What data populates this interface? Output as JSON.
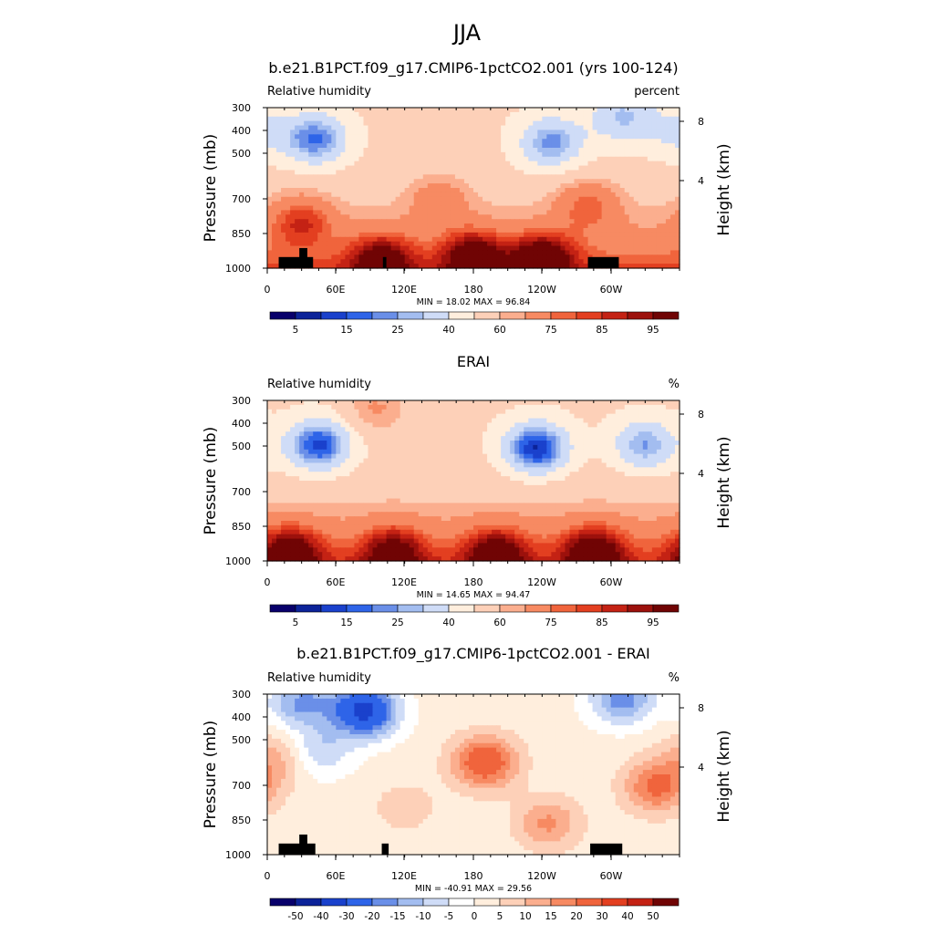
{
  "figure": {
    "title": "JJA"
  },
  "panels": [
    {
      "title": "b.e21.B1PCT.f09_g17.CMIP6-1pctCO2.001 (yrs 100-124)",
      "left_label": "Relative humidity",
      "right_label": "percent",
      "stats": "MIN =  18.02  MAX =  96.84",
      "mode": "abs"
    },
    {
      "title": "ERAI",
      "left_label": "Relative humidity",
      "right_label": "%",
      "stats": "MIN =  14.65  MAX =  94.47",
      "mode": "abs"
    },
    {
      "title": "b.e21.B1PCT.f09_g17.CMIP6-1pctCO2.001 - ERAI",
      "left_label": "Relative humidity",
      "right_label": "%",
      "stats": "MIN = -40.91  MAX =  29.56",
      "mode": "diff"
    }
  ],
  "axes": {
    "ylabel": "Pressure (mb)",
    "y2label": "Height (km)",
    "yticks": [
      "300",
      "400",
      "500",
      "700",
      "850",
      "1000"
    ],
    "y2ticks": [
      "8",
      "4"
    ],
    "xticks": [
      "0",
      "60E",
      "120E",
      "180",
      "120W",
      "60W"
    ]
  },
  "colorbars": {
    "abs": {
      "colors": [
        "#08006b",
        "#0c2399",
        "#1a41cc",
        "#2e64e8",
        "#6a8fe8",
        "#a3bdf0",
        "#cfdcf7",
        "#ffeedd",
        "#fdd0b8",
        "#fbae8e",
        "#f78a62",
        "#f0643c",
        "#e33f20",
        "#c42214",
        "#9c110c",
        "#700404"
      ],
      "labels": [
        "5",
        "15",
        "25",
        "40",
        "60",
        "75",
        "85",
        "95"
      ]
    },
    "diff": {
      "colors": [
        "#08006b",
        "#0c2399",
        "#1a41cc",
        "#2e64e8",
        "#6a8fe8",
        "#a3bdf0",
        "#cfdcf7",
        "#ffffff",
        "#ffeedd",
        "#fdd0b8",
        "#fbae8e",
        "#f78a62",
        "#f0643c",
        "#e33f20",
        "#c42214",
        "#700404"
      ],
      "labels": [
        "-50",
        "-40",
        "-30",
        "-20",
        "-15",
        "-10",
        "-5",
        "0",
        "5",
        "10",
        "15",
        "20",
        "30",
        "40",
        "50"
      ]
    }
  },
  "chart_data": [
    {
      "type": "heatmap",
      "title": "b.e21.B1PCT.f09_g17.CMIP6-1pctCO2.001 (yrs 100-124)",
      "variable": "Relative humidity",
      "units": "percent",
      "x_axis": "longitude",
      "y_axis": "pressure (mb)",
      "xlim": [
        0,
        360
      ],
      "ylim": [
        1000,
        300
      ],
      "min": 18.02,
      "max": 96.84,
      "levels": [
        5,
        10,
        15,
        20,
        25,
        30,
        40,
        50,
        60,
        65,
        75,
        80,
        85,
        90,
        95
      ],
      "blobs": [
        {
          "lon": 42,
          "p": 380,
          "value": 25
        },
        {
          "lon": 248,
          "p": 390,
          "value": 28
        },
        {
          "lon": 310,
          "p": 320,
          "value": 35
        },
        {
          "lon": 355,
          "p": 360,
          "value": 45
        },
        {
          "lon": 150,
          "p": 590,
          "value": 72
        },
        {
          "lon": 30,
          "p": 700,
          "value": 82
        },
        {
          "lon": 280,
          "p": 620,
          "value": 78
        },
        {
          "lon": 180,
          "p": 900,
          "value": 90
        },
        {
          "lon": 240,
          "p": 920,
          "value": 93
        },
        {
          "lon": 100,
          "p": 930,
          "value": 88
        }
      ],
      "topography": [
        {
          "lon_start": 10,
          "lon_end": 40,
          "p_top": 920
        },
        {
          "lon_start": 28,
          "lon_end": 35,
          "p_top": 860
        },
        {
          "lon_start": 101,
          "lon_end": 104,
          "p_top": 920
        },
        {
          "lon_start": 280,
          "lon_end": 307,
          "p_top": 920
        }
      ]
    },
    {
      "type": "heatmap",
      "title": "ERAI",
      "variable": "Relative humidity",
      "units": "%",
      "x_axis": "longitude",
      "y_axis": "pressure (mb)",
      "xlim": [
        0,
        360
      ],
      "ylim": [
        1000,
        300
      ],
      "min": 14.65,
      "max": 94.47,
      "levels": [
        5,
        10,
        15,
        20,
        25,
        30,
        40,
        50,
        60,
        65,
        75,
        80,
        85,
        90,
        95
      ],
      "blobs": [
        {
          "lon": 45,
          "p": 420,
          "value": 18
        },
        {
          "lon": 235,
          "p": 430,
          "value": 15
        },
        {
          "lon": 330,
          "p": 420,
          "value": 30
        },
        {
          "lon": 95,
          "p": 320,
          "value": 72
        },
        {
          "lon": 20,
          "p": 920,
          "value": 88
        },
        {
          "lon": 110,
          "p": 920,
          "value": 86
        },
        {
          "lon": 200,
          "p": 930,
          "value": 88
        },
        {
          "lon": 285,
          "p": 920,
          "value": 90
        }
      ],
      "topography": []
    },
    {
      "type": "heatmap",
      "title": "b.e21.B1PCT.f09_g17.CMIP6-1pctCO2.001 - ERAI",
      "variable": "Relative humidity",
      "units": "%",
      "x_axis": "longitude",
      "y_axis": "pressure (mb)",
      "xlim": [
        0,
        360
      ],
      "ylim": [
        1000,
        300
      ],
      "min": -40.91,
      "max": 29.56,
      "levels": [
        -50,
        -40,
        -30,
        -20,
        -15,
        -10,
        -5,
        0,
        5,
        10,
        15,
        20,
        30,
        40,
        50
      ],
      "blobs": [
        {
          "lon": 85,
          "p": 340,
          "value": -35
        },
        {
          "lon": 30,
          "p": 320,
          "value": -18
        },
        {
          "lon": 310,
          "p": 310,
          "value": -20
        },
        {
          "lon": 45,
          "p": 460,
          "value": -12
        },
        {
          "lon": 190,
          "p": 500,
          "value": 25
        },
        {
          "lon": 340,
          "p": 600,
          "value": 20
        },
        {
          "lon": 245,
          "p": 790,
          "value": 14
        },
        {
          "lon": 10,
          "p": 480,
          "value": 10
        },
        {
          "lon": 120,
          "p": 700,
          "value": 6
        }
      ],
      "topography": [
        {
          "lon_start": 10,
          "lon_end": 42,
          "p_top": 920
        },
        {
          "lon_start": 28,
          "lon_end": 35,
          "p_top": 860
        },
        {
          "lon_start": 100,
          "lon_end": 106,
          "p_top": 920
        },
        {
          "lon_start": 282,
          "lon_end": 310,
          "p_top": 920
        }
      ]
    }
  ]
}
